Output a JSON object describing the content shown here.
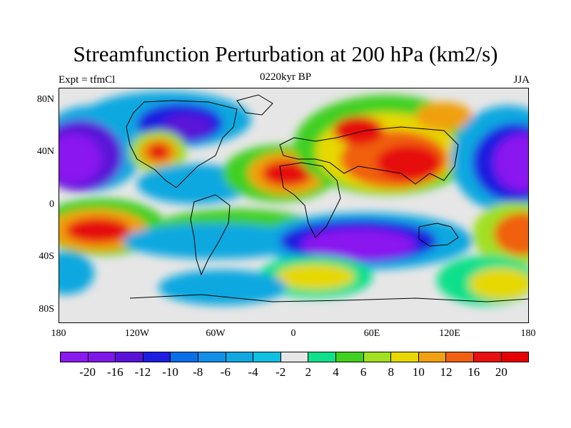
{
  "title": "Streamfunction Perturbation at 200 hPa (km2/s)",
  "subtitle_left": "Expt = tfmCl",
  "subtitle_center": "0220kyr BP",
  "subtitle_right": "JJA",
  "lat_labels": [
    "80N",
    "40N",
    "0",
    "40S",
    "80S"
  ],
  "lon_labels": [
    "180",
    "120W",
    "60W",
    "0",
    "60E",
    "120E",
    "180"
  ],
  "colorbar": {
    "labels": [
      "-20",
      "-16",
      "-12",
      "-10",
      "-8",
      "-6",
      "-4",
      "-2",
      "2",
      "4",
      "6",
      "8",
      "10",
      "12",
      "16",
      "20"
    ],
    "colors": [
      "#8a19f0",
      "#7d18e6",
      "#5a12d8",
      "#1e1ee0",
      "#0a6ee6",
      "#1090e8",
      "#10a8e0",
      "#10c0e0",
      "#e6e6e6",
      "#10e08a",
      "#40d020",
      "#a0e020",
      "#e6d800",
      "#f0a010",
      "#f06010",
      "#e61010",
      "#e80000"
    ]
  },
  "chart_data": {
    "type": "heatmap",
    "title": "Streamfunction Perturbation at 200 hPa (km2/s)",
    "x_range": [
      -180,
      180
    ],
    "y_range": [
      -90,
      90
    ],
    "contour_levels": [
      -20,
      -16,
      -12,
      -10,
      -8,
      -6,
      -4,
      -2,
      2,
      4,
      6,
      8,
      10,
      12,
      16,
      20
    ]
  }
}
